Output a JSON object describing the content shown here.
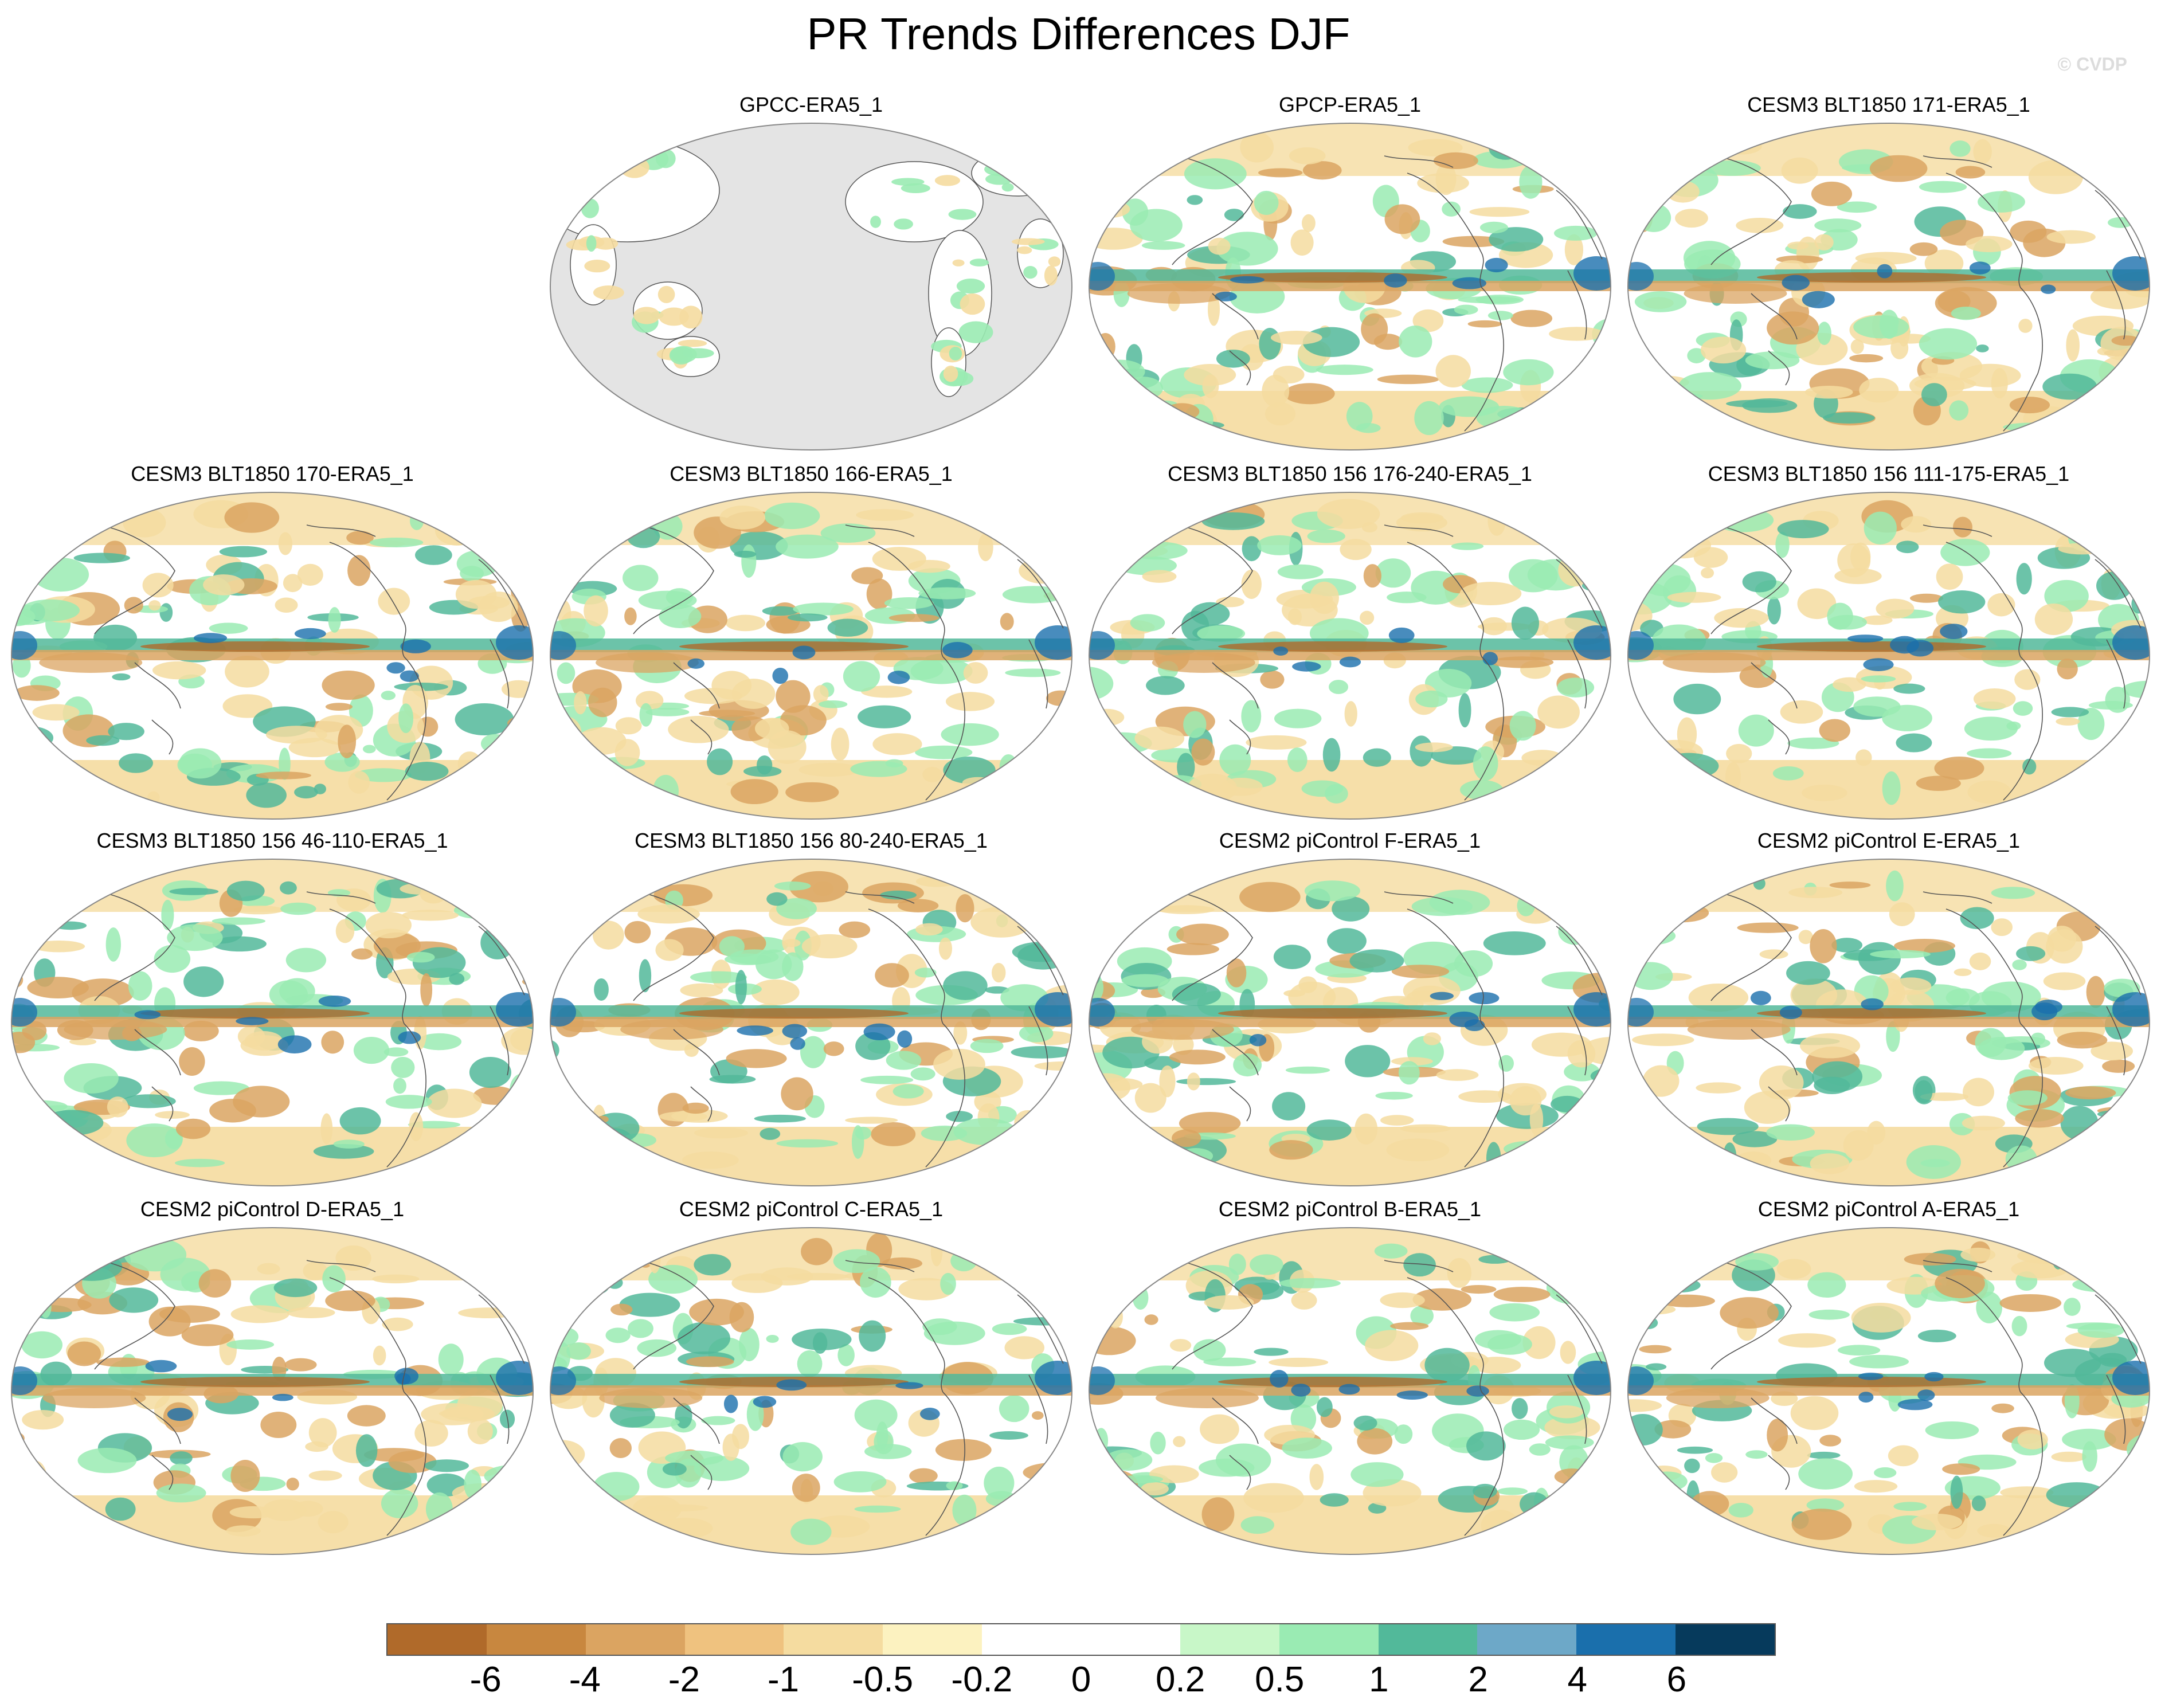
{
  "title": "PR Trends Differences DJF",
  "watermark": "© CVDP",
  "panels": [
    {
      "name": "GPCC-ERA5_1",
      "style": "obs"
    },
    {
      "name": "GPCP-ERA5_1",
      "style": "full"
    },
    {
      "name": "CESM3 BLT1850 171-ERA5_1",
      "style": "full"
    },
    {
      "name": "CESM3 BLT1850 170-ERA5_1",
      "style": "full"
    },
    {
      "name": "CESM3 BLT1850 166-ERA5_1",
      "style": "full"
    },
    {
      "name": "CESM3 BLT1850 156 176-240-ERA5_1",
      "style": "full"
    },
    {
      "name": "CESM3 BLT1850 156 111-175-ERA5_1",
      "style": "full"
    },
    {
      "name": "CESM3 BLT1850 156 46-110-ERA5_1",
      "style": "full"
    },
    {
      "name": "CESM3 BLT1850 156 80-240-ERA5_1",
      "style": "full"
    },
    {
      "name": "CESM2 piControl F-ERA5_1",
      "style": "full"
    },
    {
      "name": "CESM2 piControl E-ERA5_1",
      "style": "full"
    },
    {
      "name": "CESM2 piControl D-ERA5_1",
      "style": "full"
    },
    {
      "name": "CESM2 piControl C-ERA5_1",
      "style": "full"
    },
    {
      "name": "CESM2 piControl B-ERA5_1",
      "style": "full"
    },
    {
      "name": "CESM2 piControl A-ERA5_1",
      "style": "full"
    }
  ],
  "colorbar": {
    "colors": [
      "#b06a2a",
      "#c8873f",
      "#dba461",
      "#efc27f",
      "#f5dca0",
      "#fcf2c0",
      "#ffffff",
      "#ffffff",
      "#c8f7c8",
      "#9aebb3",
      "#52b99a",
      "#6da8c8",
      "#1a6fac",
      "#063a5c"
    ],
    "ticks": [
      "-6",
      "-4",
      "-2",
      "-1",
      "-0.5",
      "-0.2",
      "0",
      "0.2",
      "0.5",
      "1",
      "2",
      "4",
      "6"
    ]
  },
  "map_colors": {
    "dry_strong": "#b06a2a",
    "dry": "#dba461",
    "dry_light": "#f5dca0",
    "wet_light": "#9aebb3",
    "wet": "#52b99a",
    "wet_strong": "#1a6fac",
    "no_data": "#e4e4e4",
    "coast": "#555555"
  }
}
